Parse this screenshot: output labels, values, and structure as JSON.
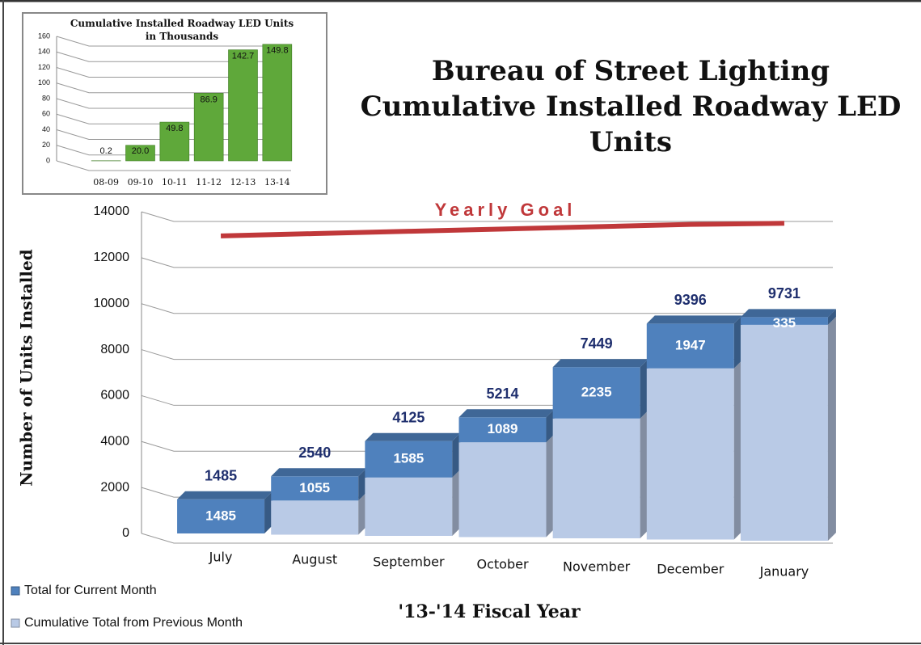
{
  "chart_data": [
    {
      "type": "bar",
      "stacked": true,
      "title": "Bureau of Street Lighting Cumulative Installed Roadway LED Units",
      "x_label": "'13-'14 Fiscal Year",
      "y_label": "Number of Units Installed",
      "categories": [
        "July",
        "August",
        "September",
        "October",
        "November",
        "December",
        "January"
      ],
      "series": [
        {
          "name": "Cumulative Total from Previous Month",
          "color": "#b9cae6",
          "values": [
            0,
            1485,
            2540,
            4125,
            5214,
            7449,
            9396
          ]
        },
        {
          "name": "Total for Current Month",
          "color": "#4f81bd",
          "values": [
            1485,
            1055,
            1585,
            1089,
            2235,
            1947,
            335
          ]
        }
      ],
      "totals": [
        1485,
        2540,
        4125,
        5214,
        7449,
        9396,
        9731
      ],
      "goal": {
        "name": "Yearly Goal",
        "color": "#c0383a",
        "values": [
          12950,
          13050,
          13150,
          13250,
          13350,
          13450,
          13500
        ]
      },
      "ylim": [
        0,
        14000
      ],
      "yticks": [
        0,
        2000,
        4000,
        6000,
        8000,
        10000,
        12000,
        14000
      ],
      "grid": true
    },
    {
      "type": "bar",
      "stacked": false,
      "title": "Cumulative Installed Roadway LED Units in Thousands",
      "categories": [
        "08-09",
        "09-10",
        "10-11",
        "11-12",
        "12-13",
        "13-14"
      ],
      "values": [
        0.2,
        20.0,
        49.8,
        86.9,
        142.7,
        149.8
      ],
      "value_labels": [
        "0.2",
        "20.0",
        "49.8",
        "86.9",
        "142.7",
        "149.8"
      ],
      "color": "#5fa83a",
      "ylim": [
        0,
        160
      ],
      "yticks": [
        0,
        20,
        40,
        60,
        80,
        100,
        120,
        140,
        160
      ],
      "grid": true
    }
  ]
}
